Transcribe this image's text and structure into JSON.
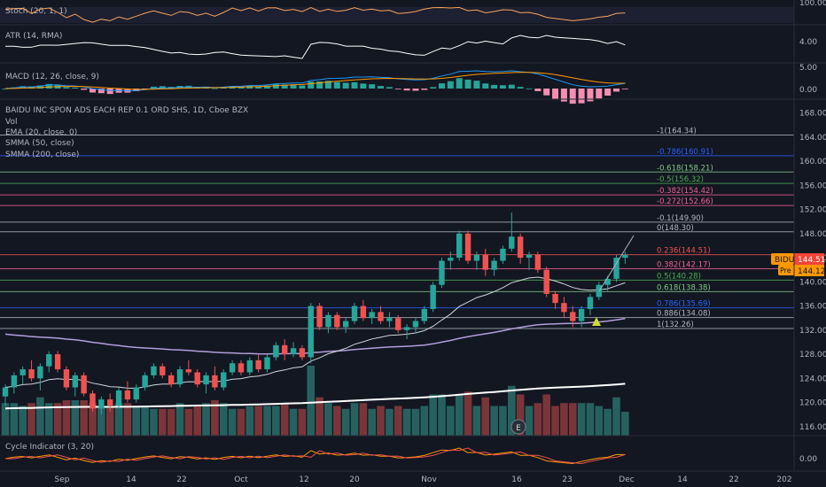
{
  "chart_data": {
    "type": "candlestick",
    "symbol": "BIDU",
    "title": "BAIDU INC SPON ADS EACH REP 0.1 ORD SHS, 1D, Cboe BZX",
    "legend": [
      "Vol",
      "EMA (20, close, 0)",
      "SMMA (50, close)",
      "SMMA (200, close)"
    ],
    "price_axis": {
      "ticks": [
        116,
        120,
        124,
        128,
        132,
        136,
        140,
        144,
        148,
        152,
        156,
        160,
        164,
        168
      ],
      "range": [
        114.5,
        170
      ]
    },
    "x_ticks": [
      "Sep",
      "14",
      "22",
      "Oct",
      "12",
      "20",
      "Nov",
      "16",
      "23",
      "Dec",
      "14",
      "22",
      "202"
    ],
    "price_tags": {
      "symbol": "BIDU",
      "last": "144.51",
      "pre_label": "Pre",
      "pre": "144.12"
    },
    "earnings_marker": "E",
    "fib_levels": [
      {
        "label": "-1(164.34)",
        "price": 164.34,
        "color": "#b2b5be"
      },
      {
        "label": "-0.786(160.91)",
        "price": 160.91,
        "color": "#2962ff"
      },
      {
        "label": "-0.618(158.21)",
        "price": 158.21,
        "color": "#81c784"
      },
      {
        "label": "-0.5(156.32)",
        "price": 156.32,
        "color": "#4caf50"
      },
      {
        "label": "-0.382(154.42)",
        "price": 154.42,
        "color": "#f06292"
      },
      {
        "label": "-0.272(152.66)",
        "price": 152.66,
        "color": "#f06292"
      },
      {
        "label": "-0.1(149.90)",
        "price": 149.9,
        "color": "#b2b5be"
      },
      {
        "label": "0(148.30)",
        "price": 148.3,
        "color": "#b2b5be"
      },
      {
        "label": "0.236(144.51)",
        "price": 144.51,
        "color": "#ef5350"
      },
      {
        "label": "0.382(142.17)",
        "price": 142.17,
        "color": "#f06292"
      },
      {
        "label": "0.5(140.28)",
        "price": 140.28,
        "color": "#4caf50"
      },
      {
        "label": "0.618(138.38)",
        "price": 138.38,
        "color": "#81c784"
      },
      {
        "label": "0.786(135.69)",
        "price": 135.69,
        "color": "#2962ff"
      },
      {
        "label": "0.886(134.08)",
        "price": 134.08,
        "color": "#b2b5be"
      },
      {
        "label": "1(132.26)",
        "price": 132.26,
        "color": "#b2b5be"
      }
    ],
    "candles_ohlc": [
      [
        121.0,
        123.0,
        119.5,
        122.5
      ],
      [
        122.5,
        125.0,
        121.5,
        124.5
      ],
      [
        124.5,
        126.0,
        123.0,
        125.5
      ],
      [
        125.5,
        127.0,
        123.5,
        124.0
      ],
      [
        124.0,
        126.5,
        122.0,
        126.0
      ],
      [
        126.0,
        128.5,
        125.0,
        128.0
      ],
      [
        128.0,
        128.5,
        125.0,
        125.5
      ],
      [
        125.5,
        126.0,
        122.0,
        122.5
      ],
      [
        122.5,
        125.0,
        121.0,
        124.5
      ],
      [
        124.5,
        125.0,
        121.0,
        121.5
      ],
      [
        121.5,
        122.0,
        118.5,
        119.0
      ],
      [
        119.0,
        121.0,
        118.0,
        120.5
      ],
      [
        120.5,
        121.5,
        118.5,
        119.5
      ],
      [
        119.5,
        122.5,
        119.0,
        122.0
      ],
      [
        122.0,
        123.5,
        120.0,
        120.5
      ],
      [
        120.5,
        123.0,
        120.0,
        122.5
      ],
      [
        122.5,
        125.0,
        122.0,
        124.5
      ],
      [
        124.5,
        126.5,
        124.0,
        126.0
      ],
      [
        126.0,
        126.5,
        124.0,
        124.5
      ],
      [
        124.5,
        125.0,
        122.5,
        123.0
      ],
      [
        123.0,
        126.0,
        122.5,
        125.5
      ],
      [
        125.5,
        127.0,
        124.5,
        125.0
      ],
      [
        125.0,
        125.5,
        122.5,
        123.0
      ],
      [
        123.0,
        125.0,
        121.5,
        124.5
      ],
      [
        124.5,
        126.0,
        122.0,
        122.5
      ],
      [
        122.5,
        125.5,
        122.0,
        125.0
      ],
      [
        125.0,
        127.0,
        124.5,
        126.5
      ],
      [
        126.5,
        127.0,
        124.5,
        125.0
      ],
      [
        125.0,
        127.5,
        124.5,
        127.0
      ],
      [
        127.0,
        128.0,
        125.0,
        125.5
      ],
      [
        125.5,
        128.0,
        125.0,
        127.5
      ],
      [
        127.5,
        130.0,
        127.0,
        129.5
      ],
      [
        129.5,
        130.5,
        127.0,
        128.0
      ],
      [
        128.0,
        130.0,
        127.5,
        129.0
      ],
      [
        129.0,
        129.5,
        127.0,
        127.5
      ],
      [
        127.5,
        136.5,
        126.5,
        136.0
      ],
      [
        136.0,
        136.5,
        132.0,
        132.5
      ],
      [
        132.5,
        135.0,
        131.5,
        134.5
      ],
      [
        134.5,
        135.0,
        132.0,
        132.5
      ],
      [
        132.5,
        134.0,
        131.5,
        133.5
      ],
      [
        133.5,
        136.5,
        133.0,
        136.0
      ],
      [
        136.0,
        137.0,
        133.5,
        134.0
      ],
      [
        134.0,
        135.5,
        133.0,
        135.0
      ],
      [
        135.0,
        136.0,
        133.0,
        133.5
      ],
      [
        133.5,
        135.0,
        132.5,
        134.0
      ],
      [
        134.0,
        134.5,
        131.5,
        132.0
      ],
      [
        132.0,
        133.0,
        130.5,
        132.5
      ],
      [
        132.5,
        134.0,
        131.5,
        133.5
      ],
      [
        133.5,
        136.0,
        133.0,
        135.5
      ],
      [
        135.5,
        140.0,
        135.0,
        139.5
      ],
      [
        139.5,
        144.0,
        139.0,
        143.5
      ],
      [
        143.5,
        145.0,
        142.0,
        144.0
      ],
      [
        144.0,
        148.5,
        143.5,
        148.0
      ],
      [
        148.0,
        148.5,
        143.0,
        143.5
      ],
      [
        143.5,
        145.0,
        142.0,
        144.5
      ],
      [
        144.5,
        145.5,
        141.0,
        142.0
      ],
      [
        142.0,
        144.0,
        141.0,
        143.5
      ],
      [
        143.5,
        146.0,
        143.0,
        145.5
      ],
      [
        145.5,
        151.5,
        145.0,
        147.5
      ],
      [
        147.5,
        148.0,
        143.0,
        144.0
      ],
      [
        144.0,
        145.0,
        142.0,
        144.5
      ],
      [
        144.5,
        145.0,
        141.5,
        142.0
      ],
      [
        142.0,
        142.5,
        137.5,
        138.0
      ],
      [
        138.0,
        138.5,
        135.5,
        136.5
      ],
      [
        136.5,
        137.5,
        134.0,
        135.0
      ],
      [
        135.0,
        136.0,
        132.5,
        133.5
      ],
      [
        133.5,
        136.0,
        132.5,
        135.5
      ],
      [
        135.5,
        138.0,
        134.5,
        137.5
      ],
      [
        137.5,
        140.0,
        137.0,
        139.5
      ],
      [
        139.5,
        141.0,
        138.5,
        140.5
      ],
      [
        140.5,
        144.5,
        140.0,
        144.0
      ],
      [
        144.0,
        145.0,
        143.0,
        144.5
      ]
    ],
    "ma_lines": {
      "ema20_series": "EMA (20, close, 0)",
      "smma50_series": "SMMA (50, close)",
      "smma200_series": "SMMA (200, close)"
    },
    "indicators": {
      "stoch": {
        "label": "Stoch (20, 1, 1)",
        "ticks": [
          "100.00"
        ]
      },
      "atr": {
        "label": "ATR (14, RMA)",
        "ticks": [
          "4.00"
        ]
      },
      "macd": {
        "label": "MACD (12, 26, close, 9)",
        "ticks": [
          "5.00",
          "0.00"
        ]
      },
      "cycle": {
        "label": "Cycle Indicator (3, 20)",
        "ticks": [
          "0.00"
        ]
      }
    }
  }
}
